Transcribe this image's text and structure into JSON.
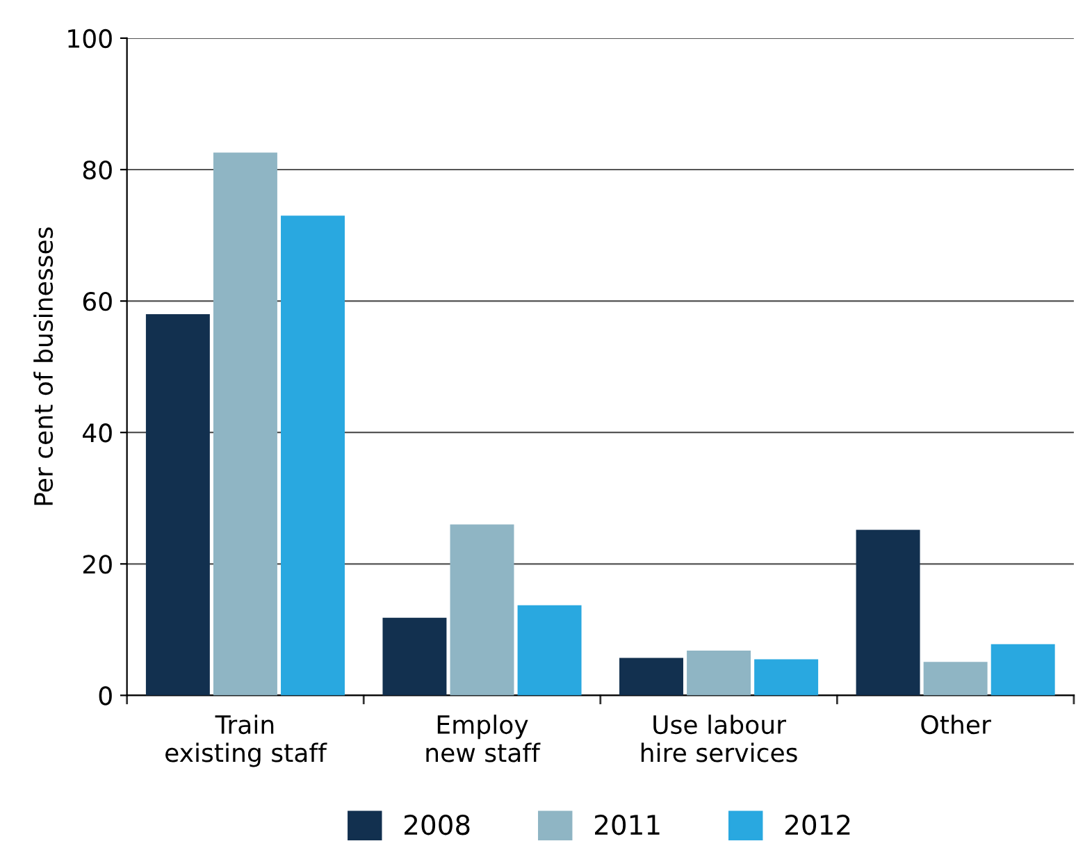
{
  "chart_data": {
    "type": "bar",
    "ylabel": "Per cent of businesses",
    "categories": [
      "Train\nexisting staff",
      "Employ\nnew staff",
      "Use labour\nhire services",
      "Other"
    ],
    "series": [
      {
        "name": "2008",
        "color": "#12304f",
        "values": [
          58,
          11.8,
          5.7,
          25.2
        ]
      },
      {
        "name": "2011",
        "color": "#8fb5c4",
        "values": [
          82.6,
          26,
          6.8,
          5.1
        ]
      },
      {
        "name": "2012",
        "color": "#29a8e0",
        "values": [
          73,
          13.7,
          5.5,
          7.8
        ]
      }
    ],
    "ylim": [
      0,
      100
    ],
    "yticks": [
      0,
      20,
      40,
      60,
      80,
      100
    ],
    "grid": "y",
    "legend": "bottom"
  }
}
